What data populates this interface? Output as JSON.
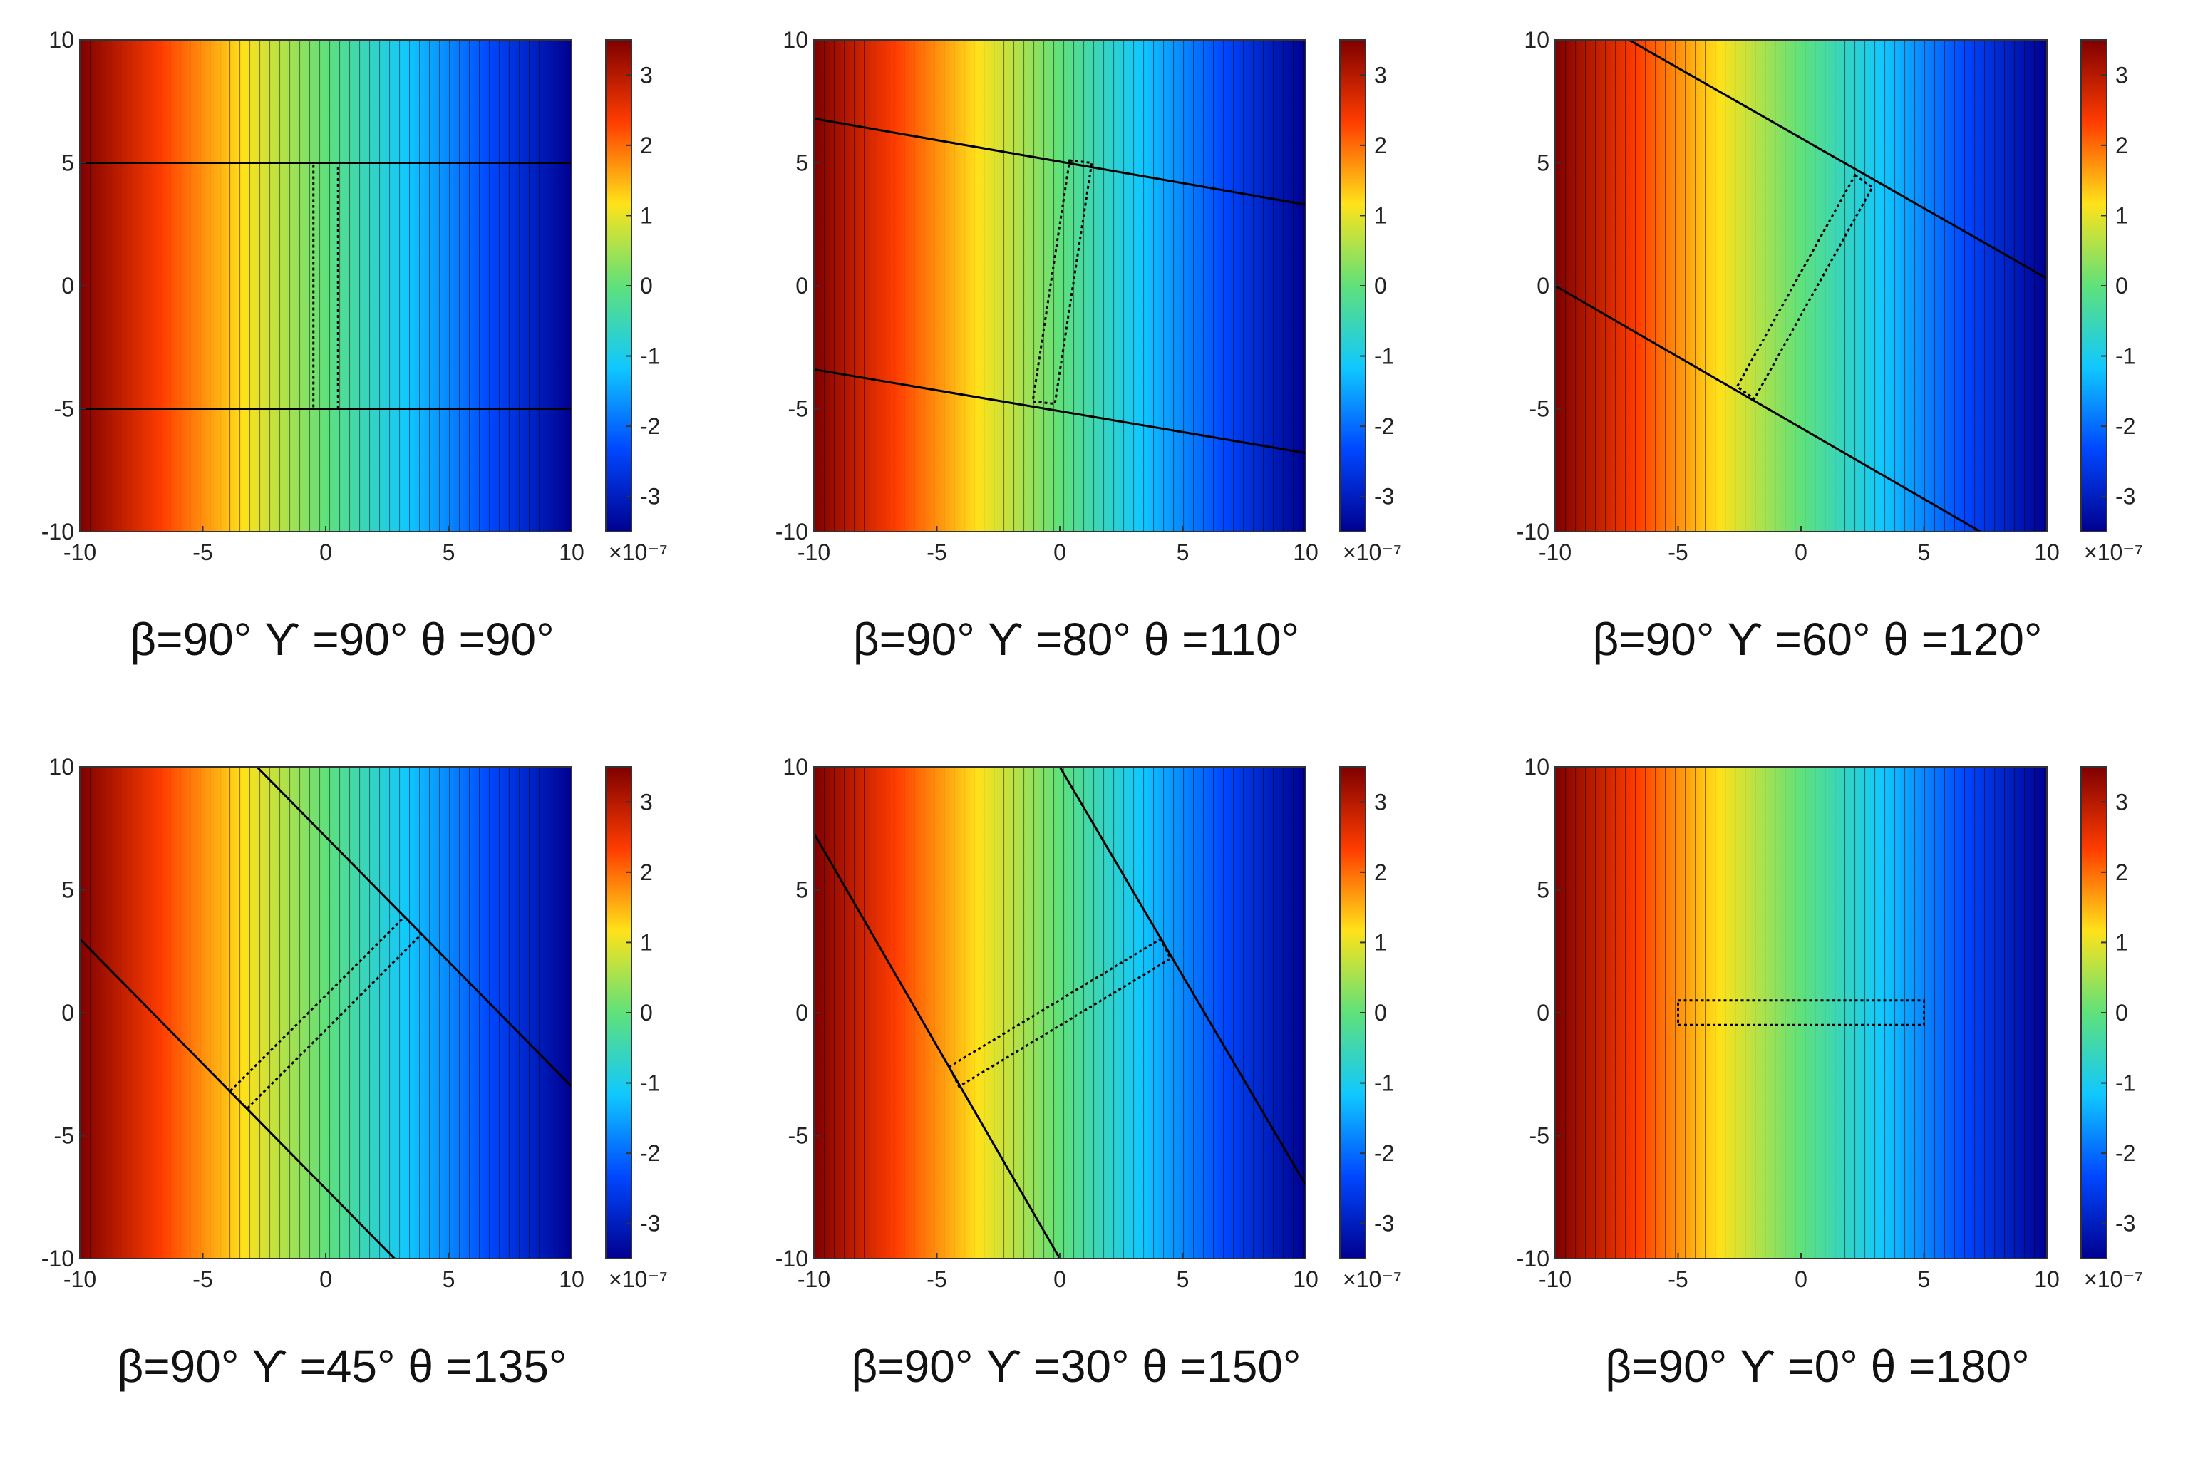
{
  "chart_data": [
    {
      "type": "heatmap",
      "panel_label": "β=90° ϒ =90° θ =90°",
      "beta_deg": 90,
      "gamma_deg": 90,
      "theta_deg": 90,
      "xlim": [
        -10,
        10
      ],
      "ylim": [
        -10,
        10
      ],
      "xticks": [
        -10,
        -5,
        0,
        5,
        10
      ],
      "yticks": [
        -10,
        -5,
        0,
        5,
        10
      ],
      "colorbar_ticks": [
        3,
        2,
        1,
        0,
        -1,
        -2,
        -3
      ],
      "colorbar_range": [
        -3.5,
        3.5
      ],
      "colorbar_exponent": "×10⁻⁷",
      "colors": [
        "#7f0000",
        "#ff3c00",
        "#ffe21a",
        "#5fe17a",
        "#10c8ff",
        "#0047ff",
        "#00008f"
      ],
      "boundaries": [
        [
          [
            -10,
            5
          ],
          [
            10,
            5
          ]
        ],
        [
          [
            -10,
            -5
          ],
          [
            10,
            -5
          ]
        ]
      ],
      "rectangle": [
        [
          -0.5,
          5
        ],
        [
          0.5,
          5
        ],
        [
          0.5,
          -5
        ],
        [
          -0.5,
          -5
        ]
      ]
    },
    {
      "type": "heatmap",
      "panel_label": "β=90° ϒ =80° θ =110°",
      "beta_deg": 90,
      "gamma_deg": 80,
      "theta_deg": 110,
      "xlim": [
        -10,
        10
      ],
      "ylim": [
        -10,
        10
      ],
      "xticks": [
        -10,
        -5,
        0,
        5,
        10
      ],
      "yticks": [
        -10,
        -5,
        0,
        5,
        10
      ],
      "colorbar_ticks": [
        3,
        2,
        1,
        0,
        -1,
        -2,
        -3
      ],
      "colorbar_range": [
        -3.5,
        3.5
      ],
      "colorbar_exponent": "×10⁻⁷",
      "colors": [
        "#7f0000",
        "#ff3c00",
        "#ffe21a",
        "#5fe17a",
        "#10c8ff",
        "#0047ff",
        "#00008f"
      ],
      "boundaries": [
        [
          [
            -10,
            6.8
          ],
          [
            10,
            3.3
          ]
        ],
        [
          [
            -10,
            -3.4
          ],
          [
            10,
            -6.8
          ]
        ]
      ],
      "rectangle": [
        [
          0.4,
          5.1
        ],
        [
          1.3,
          5.0
        ],
        [
          -0.2,
          -4.8
        ],
        [
          -1.1,
          -4.7
        ]
      ]
    },
    {
      "type": "heatmap",
      "panel_label": "β=90° ϒ =60° θ =120°",
      "beta_deg": 90,
      "gamma_deg": 60,
      "theta_deg": 120,
      "xlim": [
        -10,
        10
      ],
      "ylim": [
        -10,
        10
      ],
      "xticks": [
        -10,
        -5,
        0,
        5,
        10
      ],
      "yticks": [
        -10,
        -5,
        0,
        5,
        10
      ],
      "colorbar_ticks": [
        3,
        2,
        1,
        0,
        -1,
        -2,
        -3
      ],
      "colorbar_range": [
        -3.5,
        3.5
      ],
      "colorbar_exponent": "×10⁻⁷",
      "colors": [
        "#7f0000",
        "#ff3c00",
        "#ffe21a",
        "#5fe17a",
        "#10c8ff",
        "#0047ff",
        "#00008f"
      ],
      "boundaries": [
        [
          [
            -7,
            10
          ],
          [
            10,
            0.3
          ]
        ],
        [
          [
            -10,
            0
          ],
          [
            7.3,
            -10
          ]
        ]
      ],
      "rectangle": [
        [
          2.2,
          4.5
        ],
        [
          2.9,
          4.0
        ],
        [
          -1.9,
          -4.6
        ],
        [
          -2.6,
          -4.1
        ]
      ]
    },
    {
      "type": "heatmap",
      "panel_label": "β=90° ϒ =45° θ =135°",
      "beta_deg": 90,
      "gamma_deg": 45,
      "theta_deg": 135,
      "xlim": [
        -10,
        10
      ],
      "ylim": [
        -10,
        10
      ],
      "xticks": [
        -10,
        -5,
        0,
        5,
        10
      ],
      "yticks": [
        -10,
        -5,
        0,
        5,
        10
      ],
      "colorbar_ticks": [
        3,
        2,
        1,
        0,
        -1,
        -2,
        -3
      ],
      "colorbar_range": [
        -3.5,
        3.5
      ],
      "colorbar_exponent": "×10⁻⁷",
      "colors": [
        "#7f0000",
        "#ff3c00",
        "#ffe21a",
        "#5fe17a",
        "#10c8ff",
        "#0047ff",
        "#00008f"
      ],
      "boundaries": [
        [
          [
            -2.8,
            10
          ],
          [
            10,
            -3
          ]
        ],
        [
          [
            -10,
            3
          ],
          [
            2.8,
            -10
          ]
        ]
      ],
      "rectangle": [
        [
          3.2,
          3.9
        ],
        [
          3.9,
          3.2
        ],
        [
          -3.2,
          -3.9
        ],
        [
          -3.9,
          -3.2
        ]
      ]
    },
    {
      "type": "heatmap",
      "panel_label": "β=90° ϒ =30° θ =150°",
      "beta_deg": 90,
      "gamma_deg": 30,
      "theta_deg": 150,
      "xlim": [
        -10,
        10
      ],
      "ylim": [
        -10,
        10
      ],
      "xticks": [
        -10,
        -5,
        0,
        5,
        10
      ],
      "yticks": [
        -10,
        -5,
        0,
        5,
        10
      ],
      "colorbar_ticks": [
        3,
        2,
        1,
        0,
        -1,
        -2,
        -3
      ],
      "colorbar_range": [
        -3.5,
        3.5
      ],
      "colorbar_exponent": "×10⁻⁷",
      "colors": [
        "#7f0000",
        "#ff3c00",
        "#ffe21a",
        "#5fe17a",
        "#10c8ff",
        "#0047ff",
        "#00008f"
      ],
      "boundaries": [
        [
          [
            0,
            10
          ],
          [
            10,
            -7
          ]
        ],
        [
          [
            -10,
            7.3
          ],
          [
            0,
            -10
          ]
        ]
      ],
      "rectangle": [
        [
          4.1,
          3.0
        ],
        [
          4.5,
          2.2
        ],
        [
          -4.1,
          -3.0
        ],
        [
          -4.5,
          -2.2
        ]
      ]
    },
    {
      "type": "heatmap",
      "panel_label": "β=90° ϒ =0° θ =180°",
      "beta_deg": 90,
      "gamma_deg": 0,
      "theta_deg": 180,
      "xlim": [
        -10,
        10
      ],
      "ylim": [
        -10,
        10
      ],
      "xticks": [
        -10,
        -5,
        0,
        5,
        10
      ],
      "yticks": [
        -10,
        -5,
        0,
        5,
        10
      ],
      "colorbar_ticks": [
        3,
        2,
        1,
        0,
        -1,
        -2,
        -3
      ],
      "colorbar_range": [
        -3.5,
        3.5
      ],
      "colorbar_exponent": "×10⁻⁷",
      "colors": [
        "#7f0000",
        "#ff3c00",
        "#ffe21a",
        "#5fe17a",
        "#10c8ff",
        "#0047ff",
        "#00008f"
      ],
      "boundaries": [],
      "rectangle": [
        [
          -5,
          0.5
        ],
        [
          5,
          0.5
        ],
        [
          5,
          -0.5
        ],
        [
          -5,
          -0.5
        ]
      ]
    }
  ]
}
